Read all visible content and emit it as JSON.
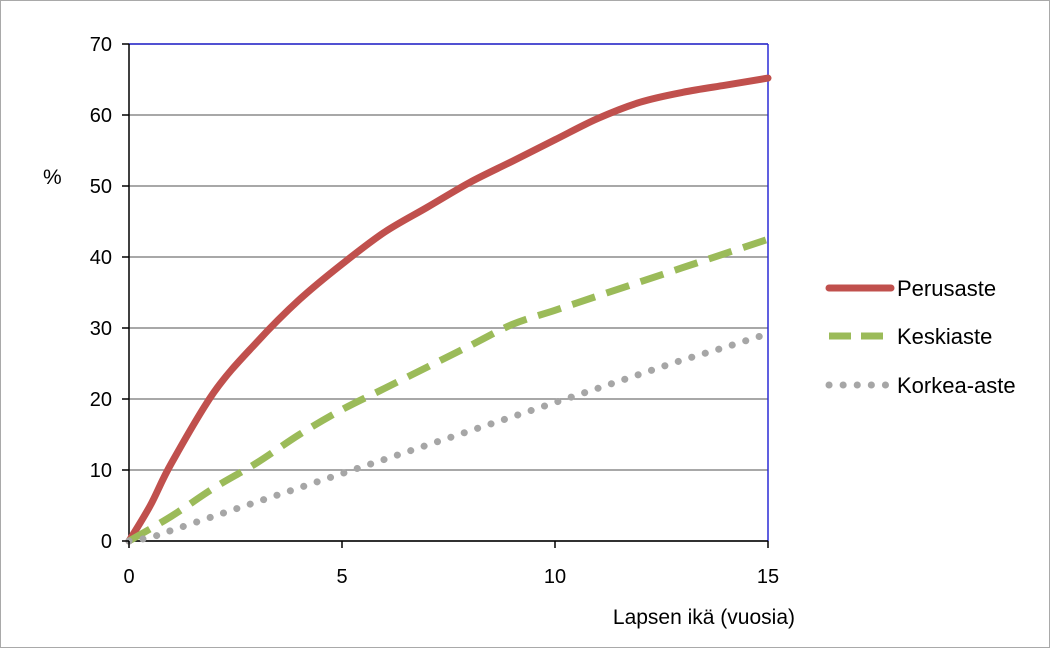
{
  "chart_data": {
    "type": "line",
    "title": "",
    "xlabel": "Lapsen ikä (vuosia)",
    "ylabel": "%",
    "xlim": [
      0,
      15
    ],
    "ylim": [
      0,
      70
    ],
    "x_ticks": [
      0,
      5,
      10,
      15
    ],
    "y_ticks": [
      0,
      10,
      20,
      30,
      40,
      50,
      60,
      70
    ],
    "grid": "horizontal",
    "legend_position": "right",
    "series": [
      {
        "name": "Perusaste",
        "style": "solid",
        "color": "#c0504d",
        "x": [
          0,
          0.5,
          1,
          2,
          3,
          4,
          5,
          6,
          7,
          8,
          9,
          10,
          11,
          12,
          13,
          14,
          15
        ],
        "values": [
          0,
          5,
          11,
          21,
          28,
          34,
          39,
          43.5,
          47,
          50.5,
          53.5,
          56.5,
          59.5,
          61.8,
          63.2,
          64.2,
          65.2
        ]
      },
      {
        "name": "Keskiaste",
        "style": "dashed",
        "color": "#9bbb59",
        "x": [
          0,
          1,
          2,
          3,
          4,
          5,
          6,
          7,
          8,
          9,
          10,
          11,
          12,
          13,
          14,
          15
        ],
        "values": [
          0,
          3.5,
          7.5,
          11,
          15,
          18.5,
          21.5,
          24.5,
          27.5,
          30.5,
          32.5,
          34.5,
          36.5,
          38.5,
          40.5,
          42.5
        ]
      },
      {
        "name": "Korkea-aste",
        "style": "dotted",
        "color": "#a6a6a6",
        "x": [
          0,
          0.5,
          1,
          2,
          3,
          4,
          5,
          6,
          7,
          8,
          9,
          10,
          11,
          12,
          13,
          14,
          15
        ],
        "values": [
          0,
          0.5,
          1.5,
          3.5,
          5.5,
          7.5,
          9.5,
          11.5,
          13.5,
          15.5,
          17.5,
          19.5,
          21.5,
          23.5,
          25.5,
          27.3,
          29.2
        ]
      }
    ]
  }
}
